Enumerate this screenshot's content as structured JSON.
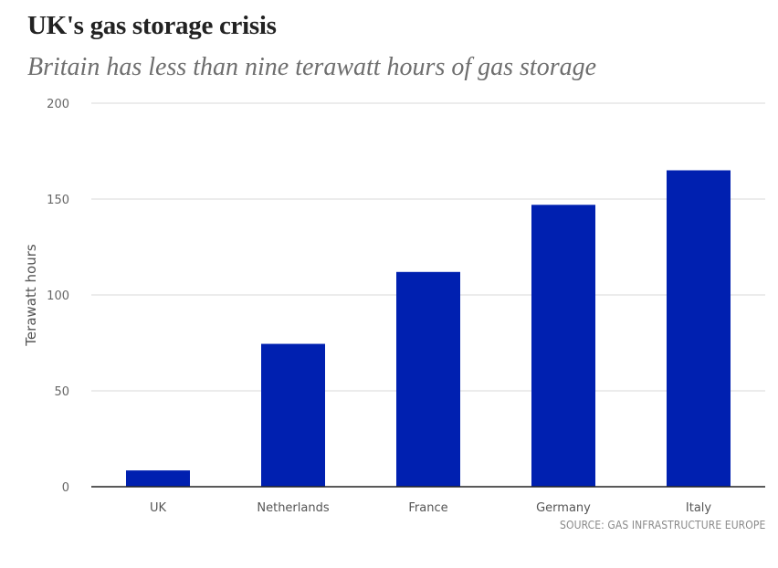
{
  "chart_data": {
    "type": "bar",
    "title": "UK's gas storage crisis",
    "subtitle": "Britain has less than nine terawatt hours of gas storage",
    "xlabel": "",
    "ylabel": "Terawatt hours",
    "ylim": [
      0,
      200
    ],
    "yticks": [
      0,
      50,
      100,
      150,
      200
    ],
    "categories": [
      "UK",
      "Netherlands",
      "France",
      "Germany",
      "Italy"
    ],
    "values": [
      8.5,
      74.5,
      112,
      147,
      165
    ],
    "grid": true,
    "bar_color": "#0020b0",
    "source": "SOURCE: GAS INFRASTRUCTURE EUROPE"
  }
}
